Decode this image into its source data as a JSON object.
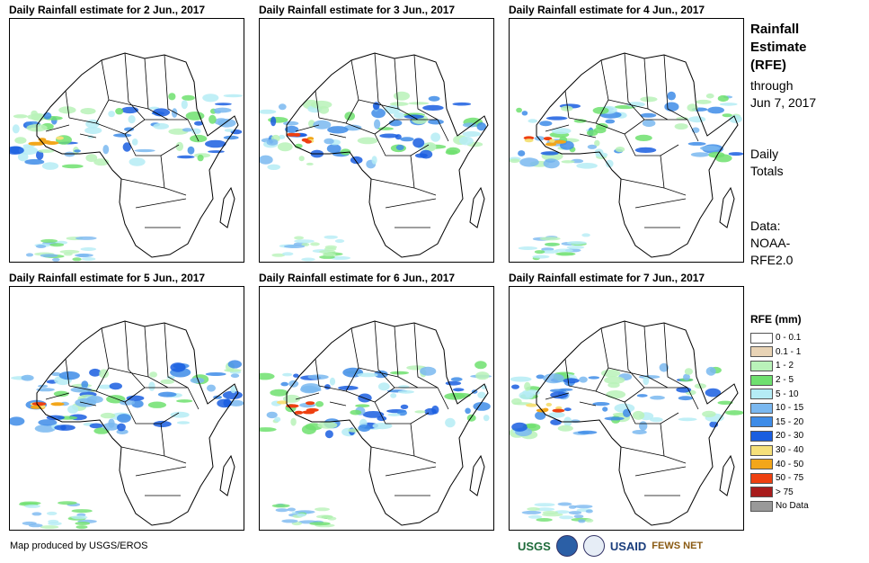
{
  "panels": [
    {
      "title": "Daily Rainfall estimate for 2 Jun., 2017"
    },
    {
      "title": "Daily Rainfall estimate for 3 Jun., 2017"
    },
    {
      "title": "Daily Rainfall estimate for 4 Jun., 2017"
    },
    {
      "title": "Daily Rainfall estimate for 5 Jun., 2017"
    },
    {
      "title": "Daily Rainfall estimate for 6 Jun., 2017"
    },
    {
      "title": "Daily Rainfall estimate for 7 Jun., 2017"
    }
  ],
  "side": {
    "title_line1": "Rainfall",
    "title_line2": "Estimate",
    "title_line3": "(RFE)",
    "through_line1": "through",
    "through_line2": "Jun 7, 2017",
    "daily_line1": "Daily",
    "daily_line2": "Totals",
    "data_line1": "Data:",
    "data_line2": "NOAA-",
    "data_line3": "RFE2.0"
  },
  "legend": {
    "title": "RFE (mm)",
    "items": [
      {
        "label": "0 - 0.1",
        "color": "#ffffff"
      },
      {
        "label": "0.1 - 1",
        "color": "#e8d3b5"
      },
      {
        "label": "1 - 2",
        "color": "#b9f2b9"
      },
      {
        "label": "2 - 5",
        "color": "#6fe06f"
      },
      {
        "label": "5 - 10",
        "color": "#b5ecf5"
      },
      {
        "label": "10 - 15",
        "color": "#7ab8f0"
      },
      {
        "label": "15 - 20",
        "color": "#3e8ce8"
      },
      {
        "label": "20 - 30",
        "color": "#1a5ee0"
      },
      {
        "label": "30 - 40",
        "color": "#f5e07a"
      },
      {
        "label": "40 - 50",
        "color": "#f2a61a"
      },
      {
        "label": "50 - 75",
        "color": "#ee4010"
      },
      {
        "label": "> 75",
        "color": "#a81c1c"
      },
      {
        "label": "No Data",
        "color": "#999999"
      }
    ]
  },
  "credit": "Map produced by USGS/EROS",
  "logos": {
    "usgs": "USGS",
    "usaid": "USAID",
    "fews": "FEWS NET"
  }
}
